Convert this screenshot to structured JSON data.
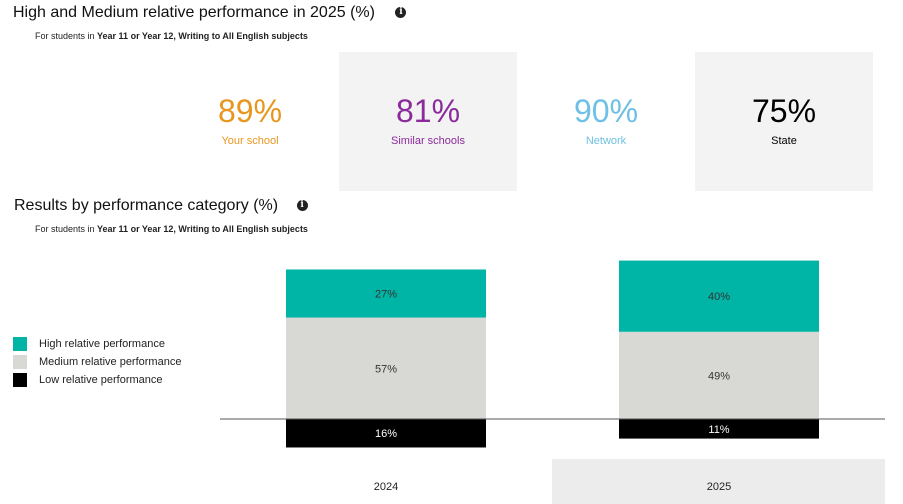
{
  "section1": {
    "title": "High and Medium relative performance in 2025 (%)",
    "info_icon": "info-icon",
    "subtitle_prefix": "For students in ",
    "subtitle_bold": "Year 11 or Year 12, Writing to All English subjects"
  },
  "stats": [
    {
      "value": "89%",
      "label": "Your school",
      "color": "#e8961e"
    },
    {
      "value": "81%",
      "label": "Similar schools",
      "color": "#8b2a9b"
    },
    {
      "value": "90%",
      "label": "Network",
      "color": "#6ec1e4"
    },
    {
      "value": "75%",
      "label": "State",
      "color": "#000000"
    }
  ],
  "section2": {
    "title": "Results by performance category (%)",
    "info_icon": "info-icon",
    "subtitle_prefix": "For students in ",
    "subtitle_bold": "Year 11 or Year 12, Writing to All English subjects"
  },
  "legend": [
    {
      "label": "High relative performance",
      "color": "#00b5a5"
    },
    {
      "label": "Medium relative performance",
      "color": "#d8d8d4"
    },
    {
      "label": "Low relative performance",
      "color": "#000000"
    }
  ],
  "chart_data": {
    "type": "bar",
    "stacked": true,
    "categories": [
      "2024",
      "2025"
    ],
    "series": [
      {
        "name": "High relative performance",
        "values": [
          27,
          40
        ],
        "color": "#00b5a5"
      },
      {
        "name": "Medium relative performance",
        "values": [
          57,
          49
        ],
        "color": "#d8d8d4"
      },
      {
        "name": "Low relative performance",
        "values": [
          16,
          11
        ],
        "color": "#000000"
      }
    ],
    "value_labels": [
      [
        "27%",
        "40%"
      ],
      [
        "57%",
        "49%"
      ],
      [
        "16%",
        "11%"
      ]
    ],
    "baseline": "Low relative performance plotted below the axis line",
    "highlighted_category": "2025"
  }
}
